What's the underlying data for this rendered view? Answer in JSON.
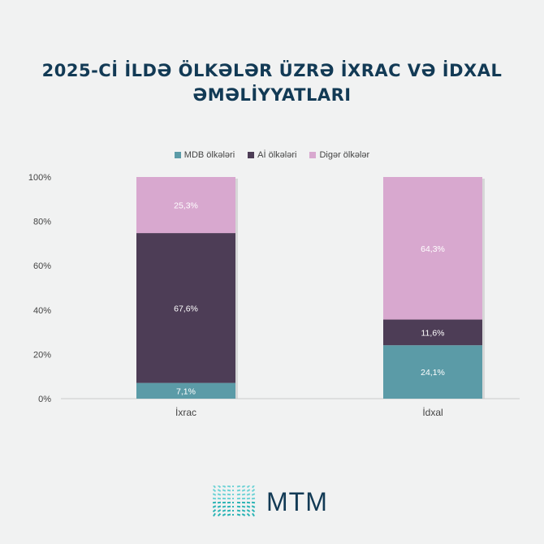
{
  "title_line1": "2025-Cİ İLDƏ ÖLKƏLƏR ÜZRƏ İXRAC VƏ İDXAL",
  "title_line2": "ƏMƏLİYYATLARI",
  "logo_text": "MTM",
  "chart_data": {
    "type": "bar",
    "stacked": true,
    "percent": true,
    "categories": [
      "İxrac",
      "İdxal"
    ],
    "series": [
      {
        "name": "MDB ölkələri",
        "color": "#5b9ba7",
        "values": [
          7.1,
          24.1
        ],
        "labels": [
          "7,1%",
          "24,1%"
        ]
      },
      {
        "name": "Aİ ölkələri",
        "color": "#4d3d56",
        "values": [
          67.6,
          11.6
        ],
        "labels": [
          "67,6%",
          "11,6%"
        ]
      },
      {
        "name": "Digər ölkələr",
        "color": "#d8a8cf",
        "values": [
          25.3,
          64.3
        ],
        "labels": [
          "25,3%",
          "64,3%"
        ]
      }
    ],
    "ylim": [
      0,
      100
    ],
    "yticks": [
      "0%",
      "20%",
      "40%",
      "60%",
      "80%",
      "100%"
    ],
    "legend": "top",
    "grid": false
  }
}
